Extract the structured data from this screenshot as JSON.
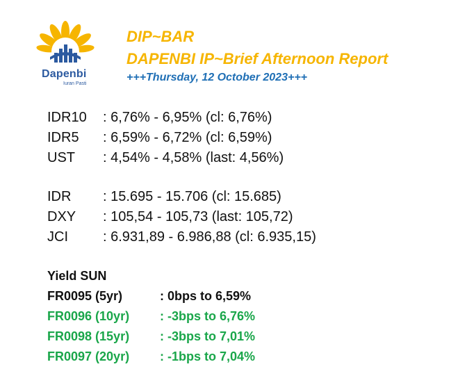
{
  "logo": {
    "name": "Dapenbi",
    "tagline": "Iuran Pasti",
    "colors": {
      "petal": "#f6b500",
      "bars": "#2c5aa0"
    }
  },
  "header": {
    "title": "DIP~BAR",
    "subtitle": "DAPENBI IP~Brief Afternoon Report",
    "date": "+++Thursday, 12 October 2023+++"
  },
  "rates": [
    {
      "label": "IDR10",
      "value": ": 6,76% - 6,95% (cl: 6,76%)"
    },
    {
      "label": "IDR5",
      "value": ": 6,59% - 6,72% (cl: 6,59%)"
    },
    {
      "label": "UST",
      "value": ": 4,54% - 4,58% (last: 4,56%)"
    }
  ],
  "markets": [
    {
      "label": "IDR",
      "value": ": 15.695 - 15.706 (cl: 15.685)"
    },
    {
      "label": "DXY",
      "value": ": 105,54 - 105,73 (last: 105,72)"
    },
    {
      "label": "JCI",
      "value": ": 6.931,89 - 6.986,88 (cl: 6.935,15)"
    }
  ],
  "yield_sun": {
    "heading": "Yield SUN",
    "items": [
      {
        "label": "FR0095 (5yr)",
        "value": ": 0bps to 6,59%",
        "color": "#111111"
      },
      {
        "label": "FR0096 (10yr)",
        "value": ": -3bps to 6,76%",
        "color": "#1aa64a"
      },
      {
        "label": "FR0098 (15yr)",
        "value": ": -3bps to 7,01%",
        "color": "#1aa64a"
      },
      {
        "label": "FR0097 (20yr)",
        "value": ": -1bps to 7,04%",
        "color": "#1aa64a"
      }
    ]
  }
}
